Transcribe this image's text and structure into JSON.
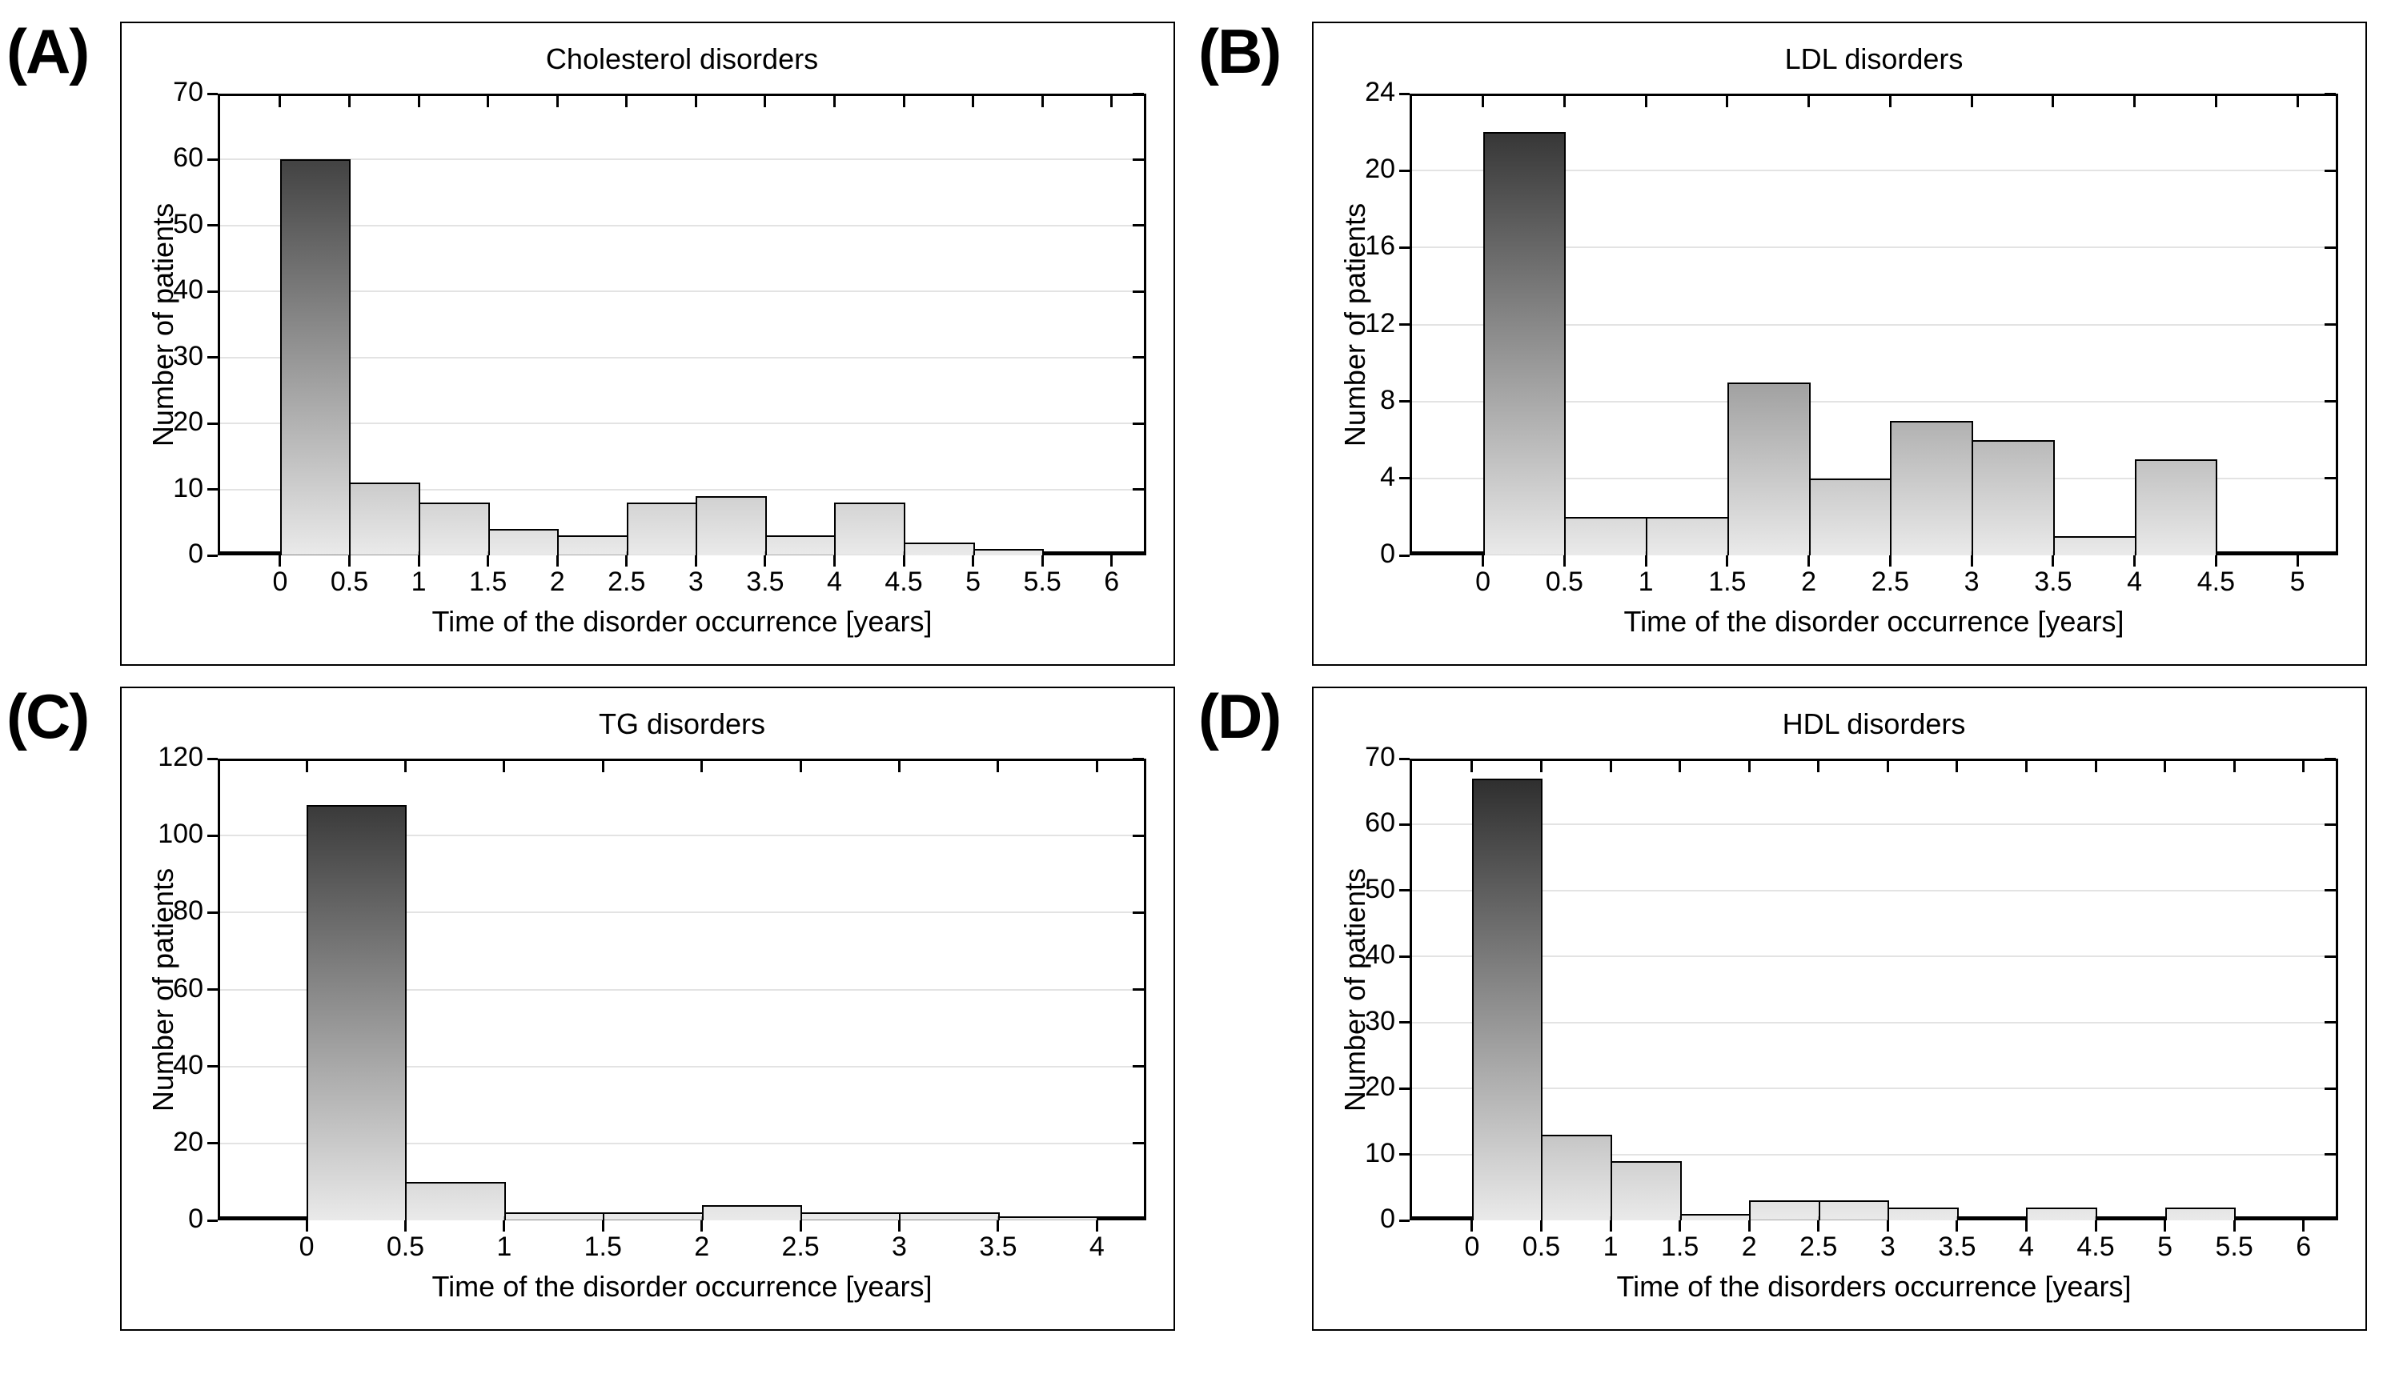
{
  "figure": {
    "background": "#ffffff",
    "panel_letters": [
      "(A)",
      "(B)",
      "(C)",
      "(D)"
    ]
  },
  "colors": {
    "axis": "#000000",
    "text": "#000000",
    "gridline": "#e3e3e3",
    "bar_border": "#000000",
    "bar_gradient_top": "#262626",
    "bar_gradient_bottom": "#eaeaea"
  },
  "chart_data": [
    {
      "type": "bar",
      "letter": "(A)",
      "title": "Cholesterol disorders",
      "xlabel": "Time of the disorder occurrence [years]",
      "ylabel": "Number of patients",
      "bin_start": 0,
      "bin_width": 0.5,
      "x_ticks": [
        "0",
        "0.5",
        "1",
        "1.5",
        "2",
        "2.5",
        "3",
        "3.5",
        "4",
        "4.5",
        "5",
        "5.5",
        "6"
      ],
      "y_ticks": [
        0,
        10,
        20,
        30,
        40,
        50,
        60,
        70
      ],
      "ylim": [
        0,
        70
      ],
      "values": [
        60,
        11,
        8,
        4,
        3,
        8,
        9,
        3,
        8,
        2,
        1,
        0
      ],
      "grid": "horizontal",
      "legend": "none"
    },
    {
      "type": "bar",
      "letter": "(B)",
      "title": "LDL disorders",
      "xlabel": "Time of the disorder occurrence [years]",
      "ylabel": "Number of patients",
      "bin_start": 0,
      "bin_width": 0.5,
      "x_ticks": [
        "0",
        "0.5",
        "1",
        "1.5",
        "2",
        "2.5",
        "3",
        "3.5",
        "4",
        "4.5",
        "5"
      ],
      "y_ticks": [
        0,
        4,
        8,
        12,
        16,
        20,
        24
      ],
      "ylim": [
        0,
        24
      ],
      "values": [
        22,
        2,
        2,
        9,
        4,
        7,
        6,
        1,
        5,
        0
      ],
      "grid": "horizontal",
      "legend": "none"
    },
    {
      "type": "bar",
      "letter": "(C)",
      "title": "TG disorders",
      "xlabel": "Time of the disorder occurrence [years]",
      "ylabel": "Number of patients",
      "bin_start": 0,
      "bin_width": 0.5,
      "x_ticks": [
        "0",
        "0.5",
        "1",
        "1.5",
        "2",
        "2.5",
        "3",
        "3.5",
        "4"
      ],
      "y_ticks": [
        0,
        20,
        40,
        60,
        80,
        100,
        120
      ],
      "ylim": [
        0,
        120
      ],
      "values": [
        108,
        10,
        2,
        2,
        4,
        2,
        2,
        1
      ],
      "grid": "horizontal",
      "legend": "none"
    },
    {
      "type": "bar",
      "letter": "(D)",
      "title": "HDL disorders",
      "xlabel": "Time of the disorders occurrence [years]",
      "ylabel": "Number of patients",
      "bin_start": 0,
      "bin_width": 0.5,
      "x_ticks": [
        "0",
        "0.5",
        "1",
        "1.5",
        "2",
        "2.5",
        "3",
        "3.5",
        "4",
        "4.5",
        "5",
        "5.5",
        "6"
      ],
      "y_ticks": [
        0,
        10,
        20,
        30,
        40,
        50,
        60,
        70
      ],
      "ylim": [
        0,
        70
      ],
      "values": [
        67,
        13,
        9,
        1,
        3,
        3,
        2,
        0,
        2,
        0,
        2,
        0
      ],
      "grid": "horizontal",
      "legend": "none"
    }
  ]
}
